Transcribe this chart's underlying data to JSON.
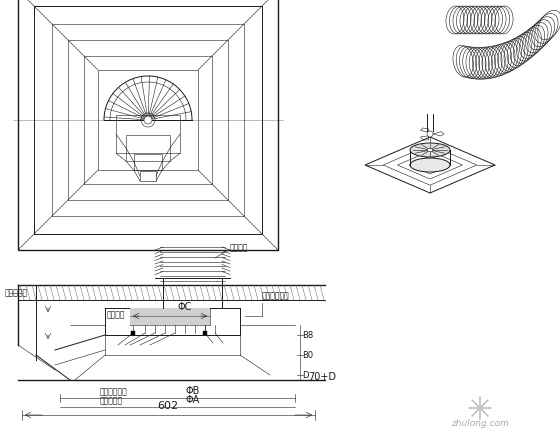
{
  "bg_color": "#ffffff",
  "line_color": "#1a1a1a",
  "gray_line": "#555555",
  "annotations": {
    "soft_duct": "伸缩软管",
    "frame": "吹顶搞桟架",
    "mount_ring": "疏风嘴座",
    "duct_clip": "软管防脱卡扎",
    "dim_dia_c": "ΦC",
    "dim_dia_b": "ΦB",
    "dim_dia_a": "ΦA",
    "dim_602": "602",
    "dim_70d": "70+D",
    "dim_b8": "B8",
    "dim_b0": "B0",
    "max_size": "最大嵌装尺寸",
    "outlet_size": "出风口尺寸",
    "dim_d": "D"
  },
  "watermark": "zhulong.com"
}
